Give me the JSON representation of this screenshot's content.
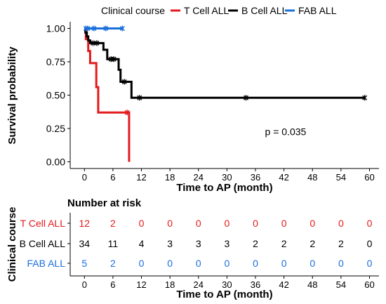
{
  "chart_data": {
    "type": "line",
    "km": {
      "xlabel": "Time to AP (month)",
      "ylabel": "Survival probability",
      "xlim": [
        -3,
        62
      ],
      "ylim": [
        -0.05,
        1.05
      ],
      "x_ticks": [
        0,
        6,
        12,
        18,
        24,
        30,
        36,
        42,
        48,
        54,
        60
      ],
      "y_ticks": [
        0.0,
        0.25,
        0.5,
        0.75,
        1.0
      ],
      "y_tick_labels": [
        "0.00",
        "0.25",
        "0.50",
        "0.75",
        "1.00"
      ],
      "grid": false,
      "legend": {
        "title": "Clinical course",
        "position": "top",
        "entries": [
          "T Cell ALL",
          "B Cell ALL",
          "FAB ALL"
        ]
      },
      "annotation": {
        "text": "p = 0.035",
        "x": 38,
        "y": 0.2
      },
      "series": [
        {
          "name": "T Cell ALL",
          "color": "#e41a1c",
          "steps": [
            [
              0,
              1.0
            ],
            [
              0.3,
              0.92
            ],
            [
              0.8,
              0.83
            ],
            [
              1.2,
              0.74
            ],
            [
              2.2,
              0.74
            ],
            [
              2.5,
              0.56
            ],
            [
              2.9,
              0.37
            ],
            [
              9.0,
              0.37
            ],
            [
              9.3,
              0.37
            ],
            [
              9.4,
              0.0
            ]
          ],
          "censor": [
            [
              9.0,
              0.37
            ]
          ]
        },
        {
          "name": "B Cell ALL",
          "color": "#000000",
          "steps": [
            [
              0,
              1.0
            ],
            [
              0.2,
              0.97
            ],
            [
              0.5,
              0.94
            ],
            [
              0.8,
              0.91
            ],
            [
              1.2,
              0.89
            ],
            [
              3.5,
              0.89
            ],
            [
              4.0,
              0.84
            ],
            [
              4.8,
              0.77
            ],
            [
              6.8,
              0.77
            ],
            [
              7.2,
              0.69
            ],
            [
              7.6,
              0.6
            ],
            [
              9.5,
              0.6
            ],
            [
              9.9,
              0.48
            ],
            [
              59.0,
              0.48
            ]
          ],
          "censor": [
            [
              1.8,
              0.89
            ],
            [
              2.6,
              0.89
            ],
            [
              5.6,
              0.77
            ],
            [
              6.2,
              0.77
            ],
            [
              8.4,
              0.6
            ],
            [
              11.6,
              0.48
            ],
            [
              34.0,
              0.48
            ],
            [
              59.0,
              0.48
            ]
          ]
        },
        {
          "name": "FAB ALL",
          "color": "#1a6fdb",
          "steps": [
            [
              0,
              1.0
            ],
            [
              8.0,
              1.0
            ]
          ],
          "censor": [
            [
              0.3,
              1.0
            ],
            [
              0.7,
              1.0
            ],
            [
              2.0,
              1.0
            ],
            [
              4.5,
              1.0
            ],
            [
              8.0,
              1.0
            ]
          ]
        }
      ]
    },
    "risk_table": {
      "title": "Number at risk",
      "ylabel": "Clinical course",
      "xlabel": "Time to AP (month)",
      "times": [
        0,
        6,
        12,
        18,
        24,
        30,
        36,
        42,
        48,
        54,
        60
      ],
      "rows": [
        {
          "label": "T Cell ALL",
          "color": "#e41a1c",
          "values": [
            12,
            2,
            0,
            0,
            0,
            0,
            0,
            0,
            0,
            0,
            0
          ]
        },
        {
          "label": "B Cell ALL",
          "color": "#000000",
          "values": [
            34,
            11,
            4,
            3,
            3,
            3,
            2,
            2,
            2,
            2,
            0
          ]
        },
        {
          "label": "FAB ALL",
          "color": "#1a6fdb",
          "values": [
            5,
            2,
            0,
            0,
            0,
            0,
            0,
            0,
            0,
            0,
            0
          ]
        }
      ]
    }
  }
}
